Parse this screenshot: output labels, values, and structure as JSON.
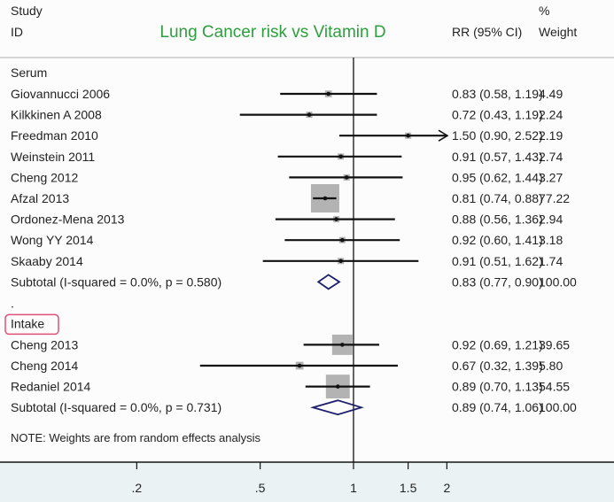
{
  "chart_data": {
    "type": "forest",
    "title": "Lung Cancer risk vs Vitamin D",
    "title_color": "#2e9e3e",
    "headers": {
      "study_top": "Study",
      "study": "ID",
      "rr": "RR (95% CI)",
      "weight_top": "%",
      "weight": "Weight"
    },
    "x_scale": "log",
    "x_ticks": [
      0.2,
      0.5,
      1,
      1.5,
      2
    ],
    "x_tick_labels": [
      ".2",
      ".5",
      "1",
      "1.5",
      "2"
    ],
    "reference_line": 1,
    "groups": [
      {
        "label": "Serum",
        "highlighted": false,
        "studies": [
          {
            "id": "Giovannucci 2006",
            "rr": 0.83,
            "lo": 0.58,
            "hi": 1.19,
            "label": "0.83 (0.58, 1.19)",
            "weight": "4.49"
          },
          {
            "id": "Kilkkinen A 2008",
            "rr": 0.72,
            "lo": 0.43,
            "hi": 1.19,
            "label": "0.72 (0.43, 1.19)",
            "weight": "2.24"
          },
          {
            "id": "Freedman 2010",
            "rr": 1.5,
            "lo": 0.9,
            "hi": 2.52,
            "label": "1.50 (0.90, 2.52)",
            "weight": "2.19"
          },
          {
            "id": "Weinstein 2011",
            "rr": 0.91,
            "lo": 0.57,
            "hi": 1.43,
            "label": "0.91 (0.57, 1.43)",
            "weight": "2.74"
          },
          {
            "id": "Cheng 2012",
            "rr": 0.95,
            "lo": 0.62,
            "hi": 1.44,
            "label": "0.95 (0.62, 1.44)",
            "weight": "3.27"
          },
          {
            "id": "Afzal 2013",
            "rr": 0.81,
            "lo": 0.74,
            "hi": 0.88,
            "label": "0.81 (0.74, 0.88)",
            "weight": "77.22"
          },
          {
            "id": "Ordonez-Mena 2013",
            "rr": 0.88,
            "lo": 0.56,
            "hi": 1.36,
            "label": "0.88 (0.56, 1.36)",
            "weight": "2.94"
          },
          {
            "id": "Wong YY 2014",
            "rr": 0.92,
            "lo": 0.6,
            "hi": 1.41,
            "label": "0.92 (0.60, 1.41)",
            "weight": "3.18"
          },
          {
            "id": "Skaaby 2014",
            "rr": 0.91,
            "lo": 0.51,
            "hi": 1.62,
            "label": "0.91 (0.51, 1.62)",
            "weight": "1.74"
          }
        ],
        "subtotal": {
          "id": "Subtotal  (I-squared = 0.0%, p = 0.580)",
          "rr": 0.83,
          "lo": 0.77,
          "hi": 0.9,
          "label": "0.83 (0.77, 0.90)",
          "weight": "100.00"
        }
      },
      {
        "label": "Intake",
        "highlighted": true,
        "studies": [
          {
            "id": "Cheng 2013",
            "rr": 0.92,
            "lo": 0.69,
            "hi": 1.21,
            "label": "0.92 (0.69, 1.21)",
            "weight": "39.65"
          },
          {
            "id": "Cheng 2014",
            "rr": 0.67,
            "lo": 0.32,
            "hi": 1.39,
            "label": "0.67 (0.32, 1.39)",
            "weight": "5.80"
          },
          {
            "id": "Redaniel 2014",
            "rr": 0.89,
            "lo": 0.7,
            "hi": 1.13,
            "label": "0.89 (0.70, 1.13)",
            "weight": "54.55"
          }
        ],
        "subtotal": {
          "id": "Subtotal  (I-squared = 0.0%, p = 0.731)",
          "rr": 0.89,
          "lo": 0.74,
          "hi": 1.06,
          "label": "0.89 (0.74, 1.06)",
          "weight": "100.00"
        }
      }
    ],
    "separator": ".",
    "note": "NOTE: Weights are from random effects analysis",
    "colors": {
      "diamond": "#1c1f6b",
      "square": "#b3b3b3",
      "highlight": "#e0507a",
      "axis_band": "#eaf2f3"
    }
  }
}
